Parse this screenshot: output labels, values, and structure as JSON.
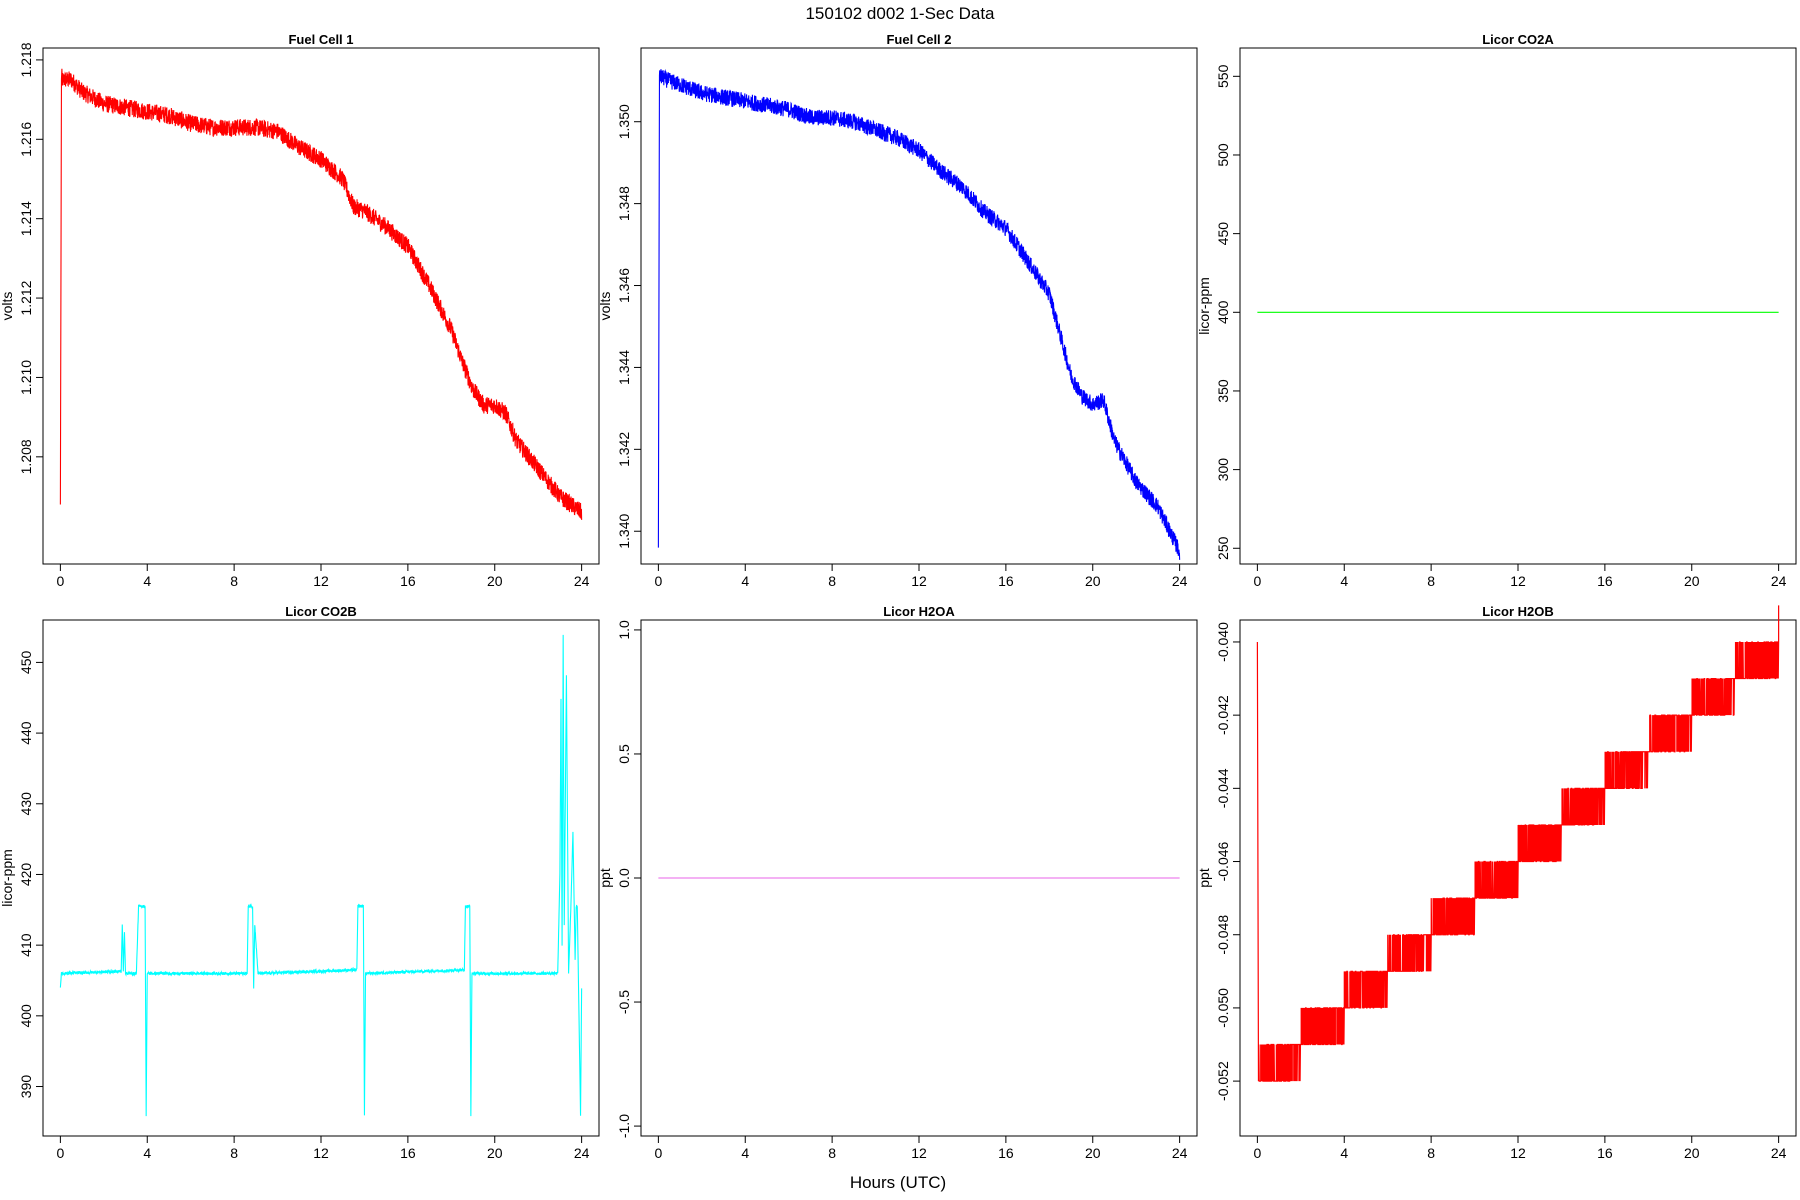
{
  "title": "150102   d002   1-Sec Data",
  "xlabel": "Hours (UTC)",
  "colors": {
    "fuel_cell_1": "#ff0000",
    "fuel_cell_2": "#0000ff",
    "co2a": "#00ff00",
    "co2b": "#00ffff",
    "h2oa": "#ee82ee",
    "h2ob": "#ff0000"
  },
  "chart_data": [
    {
      "type": "line",
      "title": "Fuel Cell 1",
      "ylabel": "volts",
      "xlim": [
        -0.8,
        24.8
      ],
      "ylim": [
        1.2053,
        1.2183
      ],
      "xticks": [
        0,
        4,
        8,
        12,
        16,
        20,
        24
      ],
      "yticks": [
        1.208,
        1.21,
        1.212,
        1.214,
        1.216,
        1.218
      ],
      "ytick_labels": [
        "1.208",
        "1.210",
        "1.212",
        "1.214",
        "1.216",
        "1.218"
      ],
      "color_key": "fuel_cell_1",
      "noise": 0.00022,
      "series": [
        {
          "x": [
            0,
            0.05,
            0.1,
            0.5,
            1,
            2,
            3,
            4,
            5,
            6,
            7,
            8,
            9,
            10,
            11,
            12,
            13,
            13.5,
            14,
            15,
            16,
            17,
            18,
            18.5,
            19,
            19.5,
            20,
            20.5,
            21,
            22,
            23,
            24
          ],
          "y": [
            1.2068,
            1.2176,
            1.2175,
            1.2175,
            1.2172,
            1.2169,
            1.2168,
            1.2167,
            1.2166,
            1.2164,
            1.2163,
            1.2163,
            1.2163,
            1.2162,
            1.2158,
            1.2155,
            1.215,
            1.2143,
            1.2142,
            1.2138,
            1.2133,
            1.2123,
            1.2112,
            1.2104,
            1.2097,
            1.2093,
            1.2093,
            1.2091,
            1.2084,
            1.2077,
            1.207,
            1.2066
          ]
        }
      ]
    },
    {
      "type": "line",
      "title": "Fuel Cell 2",
      "ylabel": "volts",
      "xlim": [
        -0.8,
        24.8
      ],
      "ylim": [
        1.3392,
        1.3518
      ],
      "xticks": [
        0,
        4,
        8,
        12,
        16,
        20,
        24
      ],
      "yticks": [
        1.34,
        1.342,
        1.344,
        1.346,
        1.348,
        1.35
      ],
      "ytick_labels": [
        "1.340",
        "1.342",
        "1.344",
        "1.346",
        "1.348",
        "1.350"
      ],
      "color_key": "fuel_cell_2",
      "noise": 0.0002,
      "series": [
        {
          "x": [
            0,
            0.05,
            0.1,
            0.5,
            1,
            2,
            3,
            4,
            5,
            6,
            7,
            8,
            9,
            10,
            11,
            12,
            13,
            14,
            15,
            16,
            17,
            18,
            18.5,
            19,
            19.5,
            20,
            20.5,
            21,
            22,
            23,
            24
          ],
          "y": [
            1.3396,
            1.3511,
            1.3511,
            1.351,
            1.3509,
            1.3507,
            1.3506,
            1.3505,
            1.3504,
            1.3503,
            1.3501,
            1.3501,
            1.35,
            1.3498,
            1.3496,
            1.3493,
            1.3488,
            1.3484,
            1.3478,
            1.3474,
            1.3466,
            1.3458,
            1.3448,
            1.3438,
            1.3433,
            1.3431,
            1.3432,
            1.3422,
            1.3412,
            1.3406,
            1.3395
          ]
        }
      ]
    },
    {
      "type": "line",
      "title": "Licor CO2A",
      "ylabel": "licor-ppm",
      "xlim": [
        -0.8,
        24.8
      ],
      "ylim": [
        240,
        568
      ],
      "xticks": [
        0,
        4,
        8,
        12,
        16,
        20,
        24
      ],
      "yticks": [
        250,
        300,
        350,
        400,
        450,
        500,
        550
      ],
      "ytick_labels": [
        "250",
        "300",
        "350",
        "400",
        "450",
        "500",
        "550"
      ],
      "color_key": "co2a",
      "noise": 0,
      "series": [
        {
          "x": [
            0,
            24
          ],
          "y": [
            400,
            400
          ]
        }
      ]
    },
    {
      "type": "line",
      "title": "Licor CO2B",
      "ylabel": "licor-ppm",
      "xlim": [
        -0.8,
        24.8
      ],
      "ylim": [
        383,
        456
      ],
      "xticks": [
        0,
        4,
        8,
        12,
        16,
        20,
        24
      ],
      "yticks": [
        390,
        400,
        410,
        420,
        430,
        440,
        450
      ],
      "ytick_labels": [
        "390",
        "400",
        "410",
        "420",
        "430",
        "440",
        "450"
      ],
      "color_key": "co2b",
      "noise": 0.2,
      "series": [
        {
          "x": [
            0,
            0.05,
            0.1,
            2.8,
            2.85,
            2.9,
            2.95,
            3.0,
            3.05,
            3.5,
            3.6,
            3.65,
            3.9,
            3.95,
            4.0,
            8.6,
            8.65,
            8.85,
            8.9,
            8.95,
            9.1,
            9.15,
            9.2,
            13.65,
            13.7,
            13.95,
            14.0,
            14.05,
            18.6,
            18.65,
            18.85,
            18.9,
            18.95,
            20.0,
            22.8,
            22.9,
            23.0,
            23.05,
            23.1,
            23.15,
            23.2,
            23.3,
            23.4,
            23.5,
            23.6,
            23.7,
            23.75,
            23.8,
            23.95,
            24.0
          ],
          "y": [
            404,
            406,
            406,
            406.3,
            413,
            406.2,
            412,
            406,
            406,
            406,
            415.5,
            415.5,
            415.5,
            386,
            406,
            406,
            415.5,
            415.5,
            404,
            413,
            406,
            406,
            406,
            406.5,
            415.5,
            415.5,
            386,
            406,
            406.5,
            415.5,
            415.5,
            386,
            406,
            406,
            406,
            406,
            420,
            445,
            410,
            454,
            413,
            448,
            406,
            415,
            426,
            408,
            415.5,
            415.5,
            386,
            404
          ]
        }
      ]
    },
    {
      "type": "line",
      "title": "Licor H2OA",
      "ylabel": "ppt",
      "xlim": [
        -0.8,
        24.8
      ],
      "ylim": [
        -1.04,
        1.04
      ],
      "xticks": [
        0,
        4,
        8,
        12,
        16,
        20,
        24
      ],
      "yticks": [
        -1.0,
        -0.5,
        0.0,
        0.5,
        1.0
      ],
      "ytick_labels": [
        "-1.0",
        "-0.5",
        "0.0",
        "0.5",
        "1.0"
      ],
      "color_key": "h2oa",
      "noise": 0,
      "series": [
        {
          "x": [
            0,
            24
          ],
          "y": [
            0,
            0
          ]
        }
      ]
    },
    {
      "type": "line",
      "title": "Licor H2OB",
      "ylabel": "ppt",
      "xlim": [
        -0.8,
        24.8
      ],
      "ylim": [
        -0.0535,
        -0.0394
      ],
      "xticks": [
        0,
        4,
        8,
        12,
        16,
        20,
        24
      ],
      "yticks": [
        -0.052,
        -0.05,
        -0.048,
        -0.046,
        -0.044,
        -0.042,
        -0.04
      ],
      "ytick_labels": [
        "-0.052",
        "-0.050",
        "-0.048",
        "-0.046",
        "-0.044",
        "-0.042",
        "-0.040"
      ],
      "color_key": "h2ob",
      "noise": 0,
      "series": [
        {
          "x": [
            0,
            0.05,
            2,
            4,
            6,
            8,
            10,
            12,
            14,
            16,
            18,
            20,
            22,
            24
          ],
          "y": [
            -0.04,
            -0.052,
            -0.051,
            -0.05,
            -0.049,
            -0.048,
            -0.047,
            -0.046,
            -0.045,
            -0.044,
            -0.043,
            -0.042,
            -0.041,
            -0.04
          ]
        }
      ]
    }
  ]
}
